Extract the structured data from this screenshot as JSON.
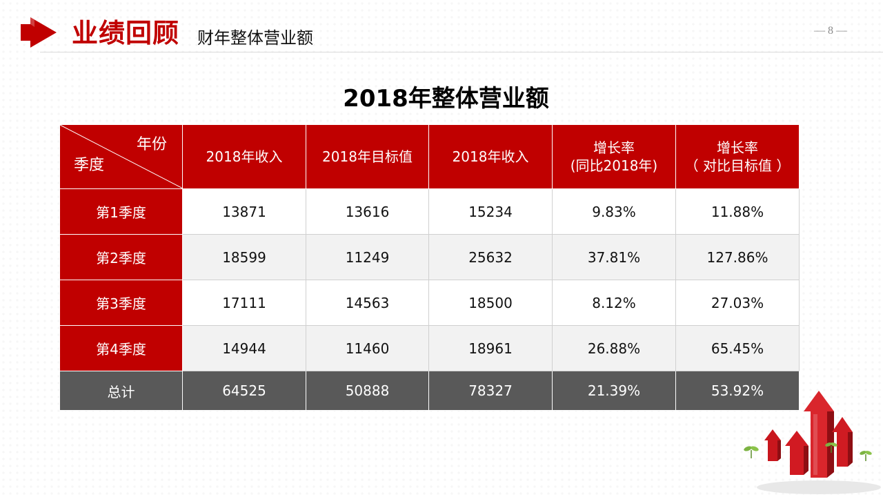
{
  "header": {
    "section_title": "业绩回顾",
    "subtitle": "财年整体营业额",
    "page_number": "— 8 —"
  },
  "title": "2018年整体营业额",
  "table": {
    "corner_top": "年份",
    "corner_bottom": "季度",
    "columns": [
      "2018年收入",
      "2018年目标值",
      "2018年收入",
      "增长率\n(同比2018年)",
      "增长率\n（ 对比目标值 ）"
    ],
    "rows": [
      {
        "label": "第1季度",
        "values": [
          "13871",
          "13616",
          "15234",
          "9.83%",
          "11.88%"
        ]
      },
      {
        "label": "第2季度",
        "values": [
          "18599",
          "11249",
          "25632",
          "37.81%",
          "127.86%"
        ]
      },
      {
        "label": "第3季度",
        "values": [
          "17111",
          "14563",
          "18500",
          "8.12%",
          "27.03%"
        ]
      },
      {
        "label": "第4季度",
        "values": [
          "14944",
          "11460",
          "18961",
          "26.88%",
          "65.45%"
        ]
      }
    ],
    "total": {
      "label": "总计",
      "values": [
        "64525",
        "50888",
        "78327",
        "21.39%",
        "53.92%"
      ]
    }
  },
  "colors": {
    "accent": "#c00000",
    "total_row": "#595959",
    "stripe": "#f2f2f2"
  },
  "icons": [
    "header-arrow-icon",
    "growth-arrows-illustration"
  ]
}
